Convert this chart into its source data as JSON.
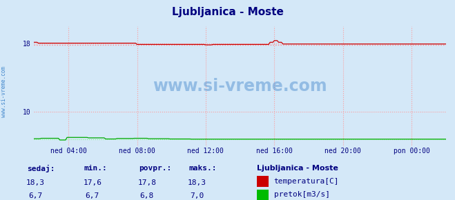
{
  "title": "Ljubljanica - Moste",
  "title_color": "#000080",
  "bg_color": "#d4e8f8",
  "plot_bg_color": "#d4e8f8",
  "grid_color": "#ff9999",
  "xlim": [
    0,
    288
  ],
  "ylim": [
    6.0,
    20.0
  ],
  "ytick_positions": [
    10,
    18
  ],
  "ytick_labels": [
    "10",
    "18"
  ],
  "xtick_positions": [
    24,
    72,
    120,
    168,
    216,
    264
  ],
  "xtick_labels": [
    "ned 04:00",
    "ned 08:00",
    "ned 12:00",
    "ned 16:00",
    "ned 20:00",
    "pon 00:00"
  ],
  "temp_color": "#cc0000",
  "temp_avg_color": "#ff8888",
  "flow_color": "#00aa00",
  "flow_avg_color": "#88ff88",
  "watermark_text": "www.si-vreme.com",
  "watermark_color": "#4488cc",
  "sidebar_text": "www.si-vreme.com",
  "sidebar_color": "#4488cc",
  "legend_title": "Ljubljanica - Moste",
  "legend_title_color": "#000080",
  "legend_items": [
    "temperatura[C]",
    "pretok[m3/s]"
  ],
  "legend_colors": [
    "#cc0000",
    "#00bb00"
  ],
  "stats_labels": [
    "sedaj:",
    "min.:",
    "povpr.:",
    "maks.:"
  ],
  "stats_temp": [
    "18,3",
    "17,6",
    "17,8",
    "18,3"
  ],
  "stats_flow": [
    "6,7",
    "6,7",
    "6,8",
    "7,0"
  ],
  "stats_color": "#000080",
  "n_points": 289,
  "temp_avg_val": 17.8,
  "flow_avg_val": 6.8
}
